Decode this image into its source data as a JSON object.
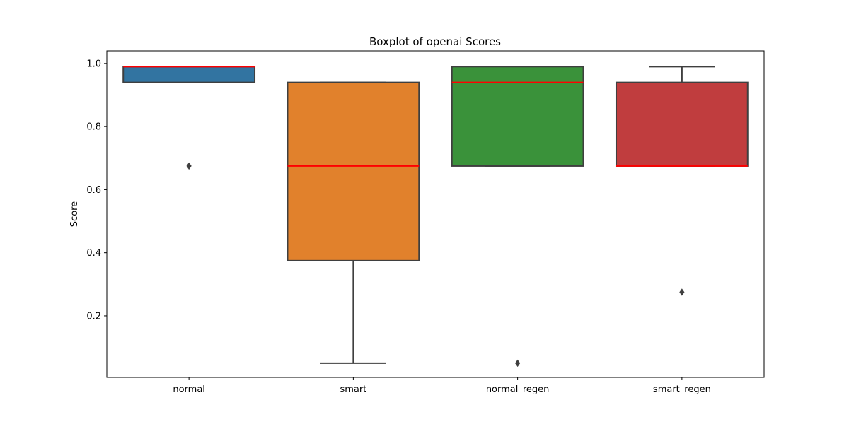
{
  "chart_data": {
    "type": "box",
    "title": "Boxplot of openai Scores",
    "xlabel": "",
    "ylabel": "Score",
    "ylim": [
      0.005,
      1.04
    ],
    "yticks": [
      0.2,
      0.4,
      0.6,
      0.8,
      1.0
    ],
    "ytick_labels": [
      "0.2",
      "0.4",
      "0.6",
      "0.8",
      "1.0"
    ],
    "grid": false,
    "median_color": "#ff0000",
    "edge_color": "#3f3f3f",
    "categories": [
      "normal",
      "smart",
      "normal_regen",
      "smart_regen"
    ],
    "boxes": [
      {
        "label": "normal",
        "color": "#3274a1",
        "whisker_low": 0.94,
        "q1": 0.94,
        "median": 0.99,
        "q3": 0.99,
        "whisker_high": 0.99,
        "outliers": [
          0.675
        ]
      },
      {
        "label": "smart",
        "color": "#e1812c",
        "whisker_low": 0.05,
        "q1": 0.375,
        "median": 0.675,
        "q3": 0.94,
        "whisker_high": 0.94,
        "outliers": []
      },
      {
        "label": "normal_regen",
        "color": "#3a923a",
        "whisker_low": 0.675,
        "q1": 0.675,
        "median": 0.94,
        "q3": 0.99,
        "whisker_high": 0.99,
        "outliers": [
          0.05
        ]
      },
      {
        "label": "smart_regen",
        "color": "#c03d3e",
        "whisker_low": 0.675,
        "q1": 0.675,
        "median": 0.675,
        "q3": 0.94,
        "whisker_high": 0.99,
        "outliers": [
          0.275
        ]
      }
    ]
  }
}
